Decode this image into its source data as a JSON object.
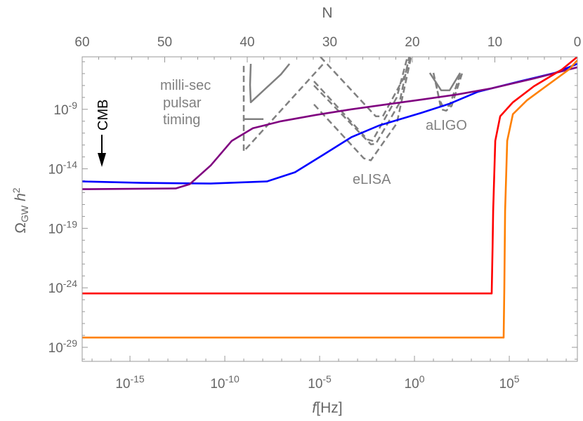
{
  "chart_data": {
    "type": "line",
    "x_scale": "log10",
    "y_scale": "log10",
    "xlabel_italic": "f",
    "xlabel_rest": "[Hz]",
    "ylabel_main": "Ω",
    "ylabel_sub": "GW",
    "ylabel_rest": " h",
    "ylabel_sup": "2",
    "top_axis_label": "N",
    "xlim": [
      -17.52,
      8.59
    ],
    "ylim": [
      -30.18,
      -4.59
    ],
    "grid": false,
    "x_ticks": [
      {
        "exp": "-15",
        "value": -15
      },
      {
        "exp": "-10",
        "value": -10
      },
      {
        "exp": "-5",
        "value": -5
      },
      {
        "exp": "0",
        "value": 0
      },
      {
        "exp": "5",
        "value": 5
      }
    ],
    "y_ticks": [
      {
        "exp": "-9",
        "value": -9
      },
      {
        "exp": "-14",
        "value": -14
      },
      {
        "exp": "-19",
        "value": -19
      },
      {
        "exp": "-24",
        "value": -24
      },
      {
        "exp": "-29",
        "value": -29
      }
    ],
    "tick_base": "10",
    "top_ticks": [
      "60",
      "50",
      "40",
      "30",
      "20",
      "10",
      "0"
    ],
    "top_range": [
      60,
      0
    ],
    "series": [
      {
        "color": "#0000ff",
        "points": [
          [
            -17.52,
            -15.06
          ],
          [
            -14.44,
            -15.18
          ],
          [
            -10.74,
            -15.24
          ],
          [
            -7.78,
            -15.06
          ],
          [
            -6.3,
            -14.29
          ],
          [
            -4.81,
            -12.82
          ],
          [
            -3.33,
            -11.35
          ],
          [
            -1.85,
            -10.35
          ],
          [
            0.37,
            -9.29
          ],
          [
            1.85,
            -8.53
          ],
          [
            3.33,
            -7.53
          ],
          [
            5.56,
            -6.65
          ],
          [
            7.41,
            -5.94
          ],
          [
            8.59,
            -5.18
          ]
        ]
      },
      {
        "color": "#800080",
        "points": [
          [
            -17.52,
            -15.71
          ],
          [
            -12.59,
            -15.65
          ],
          [
            -11.85,
            -15.29
          ],
          [
            -10.74,
            -13.71
          ],
          [
            -9.63,
            -11.65
          ],
          [
            -8.52,
            -10.59
          ],
          [
            -7.04,
            -10.0
          ],
          [
            -5.19,
            -9.47
          ],
          [
            -3.33,
            -9.0
          ],
          [
            -1.48,
            -8.59
          ],
          [
            0.37,
            -8.18
          ],
          [
            2.22,
            -7.76
          ],
          [
            4.07,
            -7.24
          ],
          [
            6.3,
            -6.41
          ],
          [
            8.59,
            -5.47
          ]
        ]
      },
      {
        "color": "#ff0000",
        "points": [
          [
            -17.52,
            -24.47
          ],
          [
            4.07,
            -24.47
          ],
          [
            4.12,
            -20.5
          ],
          [
            4.15,
            -17.53
          ],
          [
            4.26,
            -11.65
          ],
          [
            4.52,
            -9.59
          ],
          [
            5.19,
            -8.41
          ],
          [
            6.3,
            -7.06
          ],
          [
            7.78,
            -5.65
          ],
          [
            8.59,
            -4.59
          ]
        ]
      },
      {
        "color": "#ff8000",
        "points": [
          [
            -17.52,
            -28.18
          ],
          [
            4.7,
            -28.18
          ],
          [
            4.74,
            -24.0
          ],
          [
            4.78,
            -17.53
          ],
          [
            4.89,
            -11.65
          ],
          [
            5.19,
            -9.41
          ],
          [
            5.93,
            -8.24
          ],
          [
            7.04,
            -6.94
          ],
          [
            8.15,
            -5.65
          ],
          [
            8.59,
            -4.88
          ]
        ]
      }
    ],
    "sensitivity_curves": [
      {
        "label_ref": "pulsar",
        "style": "dashed",
        "points": [
          [
            -9.0,
            -5.35
          ],
          [
            -9.0,
            -12.53
          ],
          [
            -4.74,
            -5.06
          ]
        ]
      },
      {
        "label_ref": "pulsar",
        "style": "solid",
        "points": [
          [
            -8.63,
            -5.18
          ],
          [
            -8.67,
            -6.94
          ],
          [
            -8.63,
            -8.41
          ],
          [
            -7.04,
            -6.06
          ],
          [
            -6.59,
            -5.18
          ]
        ]
      },
      {
        "label_ref": "pulsar",
        "style": "solid",
        "points": [
          [
            -9.0,
            -9.82
          ],
          [
            -7.96,
            -9.82
          ]
        ]
      },
      {
        "label_ref": "eLISA",
        "style": "dashed",
        "points": [
          [
            -4.96,
            -4.59
          ],
          [
            -2.04,
            -9.59
          ],
          [
            -1.67,
            -9.59
          ],
          [
            -0.56,
            -6.35
          ],
          [
            -0.19,
            -4.59
          ]
        ]
      },
      {
        "label_ref": "eLISA",
        "style": "dashed",
        "points": [
          [
            -5.3,
            -6.65
          ],
          [
            -2.48,
            -11.53
          ],
          [
            -2.22,
            -11.65
          ],
          [
            -0.93,
            -8.0
          ],
          [
            -0.37,
            -4.59
          ]
        ]
      },
      {
        "label_ref": "eLISA",
        "style": "dashed",
        "points": [
          [
            -5.3,
            -7.0
          ],
          [
            -2.3,
            -11.94
          ],
          [
            -2.04,
            -11.9
          ],
          [
            -0.8,
            -8.5
          ],
          [
            -0.28,
            -4.59
          ]
        ]
      },
      {
        "label_ref": "eLISA",
        "style": "dashed",
        "points": [
          [
            -5.3,
            -8.59
          ],
          [
            -2.67,
            -13.12
          ],
          [
            -2.3,
            -13.29
          ],
          [
            -0.93,
            -10.18
          ],
          [
            -0.19,
            -4.7
          ]
        ]
      },
      {
        "label_ref": "aLIGO",
        "style": "solid",
        "points": [
          [
            0.81,
            -5.94
          ],
          [
            1.41,
            -7.41
          ],
          [
            1.85,
            -7.41
          ],
          [
            2.41,
            -5.94
          ]
        ]
      },
      {
        "label_ref": "aLIGO",
        "style": "dashed",
        "points": [
          [
            1.0,
            -5.94
          ],
          [
            1.3,
            -8.12
          ],
          [
            1.48,
            -8.71
          ],
          [
            1.85,
            -8.71
          ],
          [
            2.41,
            -6.06
          ]
        ]
      },
      {
        "label_ref": "aLIGO",
        "style": "dashed",
        "points": [
          [
            1.11,
            -6.65
          ],
          [
            1.41,
            -9.0
          ],
          [
            1.67,
            -9.12
          ],
          [
            1.96,
            -8.71
          ],
          [
            2.52,
            -5.94
          ]
        ]
      }
    ],
    "sensitivity_color": "#808080",
    "annotations": {
      "pulsar_line1": "milli-sec",
      "pulsar_line2": "pulsar",
      "pulsar_line3": "timing",
      "elisa": "eLISA",
      "aligo": "aLIGO",
      "cmb": "CMB"
    }
  }
}
